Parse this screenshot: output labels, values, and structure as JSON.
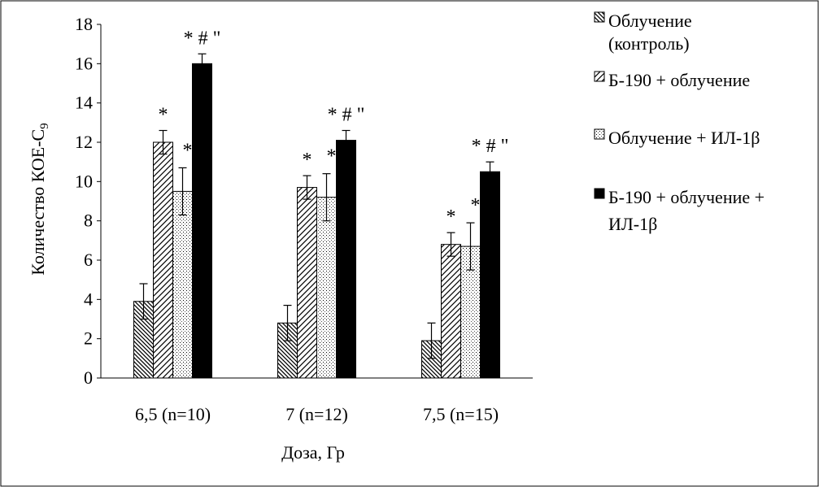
{
  "chart_data": {
    "type": "bar",
    "xlabel": "Доза, Гр",
    "ylabel": "Количество КОЕ-С",
    "ylabel_subscript": "9",
    "ylim": [
      0,
      18
    ],
    "yticks": [
      0,
      2,
      4,
      6,
      8,
      10,
      12,
      14,
      16,
      18
    ],
    "grid": false,
    "legend_position": "right",
    "categories": [
      "6,5 (n=10)",
      "7 (n=12)",
      "7,5 (n=15)"
    ],
    "series": [
      {
        "name": "Облучение (контроль)",
        "legend_lines": [
          "Облучение",
          "(контроль)"
        ],
        "pattern": "dense-diagonal",
        "values": [
          3.9,
          2.8,
          1.9
        ],
        "errors": [
          0.9,
          0.9,
          0.9
        ],
        "annotations": [
          "",
          "",
          ""
        ]
      },
      {
        "name": "Б-190 + облучение",
        "legend_lines": [
          "Б-190 + облучение"
        ],
        "pattern": "wide-diagonal",
        "values": [
          12.0,
          9.7,
          6.8
        ],
        "errors": [
          0.6,
          0.6,
          0.6
        ],
        "annotations": [
          "*",
          "*",
          "*"
        ]
      },
      {
        "name": "Облучение + ИЛ-1β",
        "legend_lines": [
          "Облучение + ИЛ-1β"
        ],
        "pattern": "dots",
        "values": [
          9.5,
          9.2,
          6.7
        ],
        "errors": [
          1.2,
          1.2,
          1.2
        ],
        "annotations": [
          "*",
          "*",
          "*"
        ]
      },
      {
        "name": "Б-190 + облучение + ИЛ-1β",
        "legend_lines": [
          "Б-190 + облучение +",
          "ИЛ-1β"
        ],
        "pattern": "solid",
        "values": [
          16.0,
          12.1,
          10.5
        ],
        "errors": [
          0.5,
          0.5,
          0.5
        ],
        "annotations": [
          "* # \"",
          "* # \"",
          "* # \""
        ]
      }
    ]
  }
}
